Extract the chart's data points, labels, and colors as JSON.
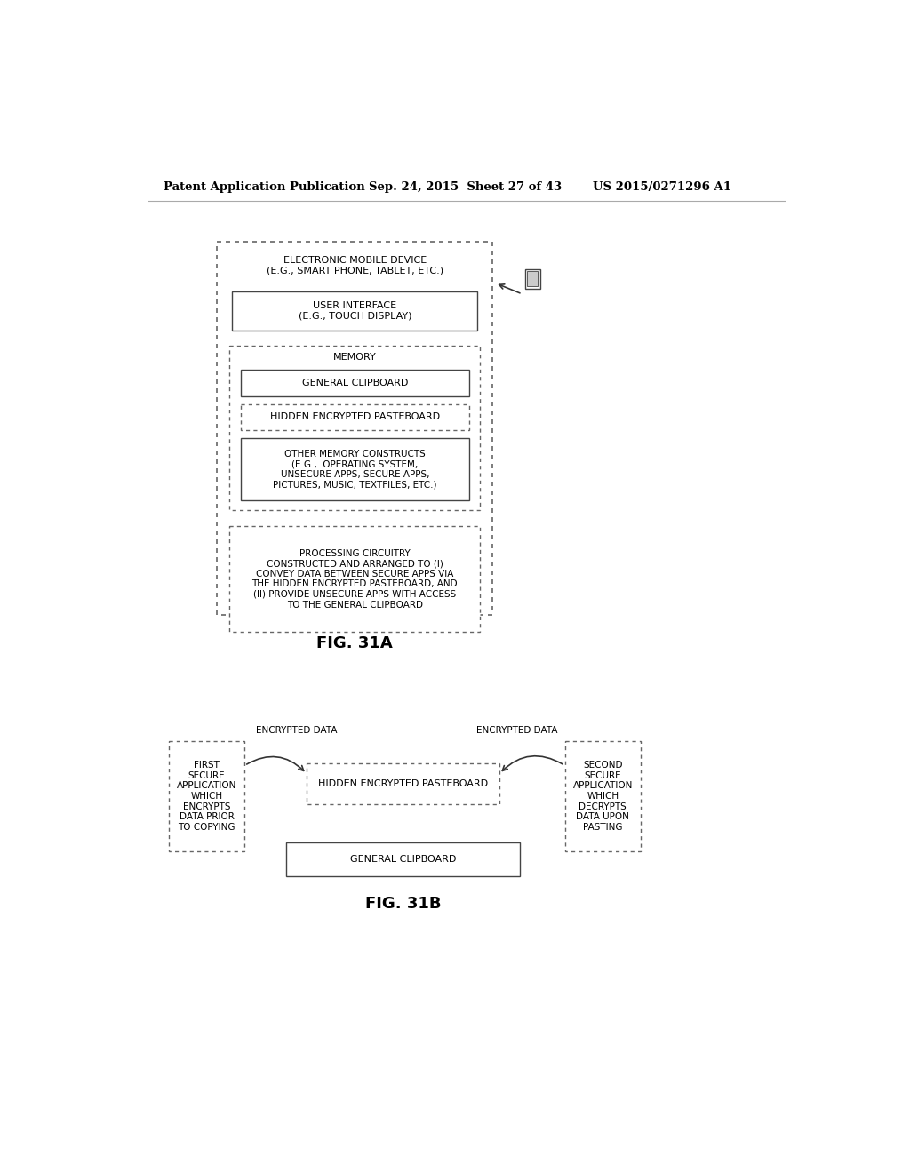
{
  "header_left": "Patent Application Publication",
  "header_mid": "Sep. 24, 2015  Sheet 27 of 43",
  "header_right": "US 2015/0271296 A1",
  "fig_label_a": "FIG. 31A",
  "fig_label_b": "FIG. 31B",
  "bg_color": "#ffffff",
  "text_color": "#000000",
  "fig31a": {
    "outer_label": "ELECTRONIC MOBILE DEVICE\n(E.G., SMART PHONE, TABLET, ETC.)",
    "ui_label": "USER INTERFACE\n(E.G., TOUCH DISPLAY)",
    "memory_label": "MEMORY",
    "gc_label": "GENERAL CLIPBOARD",
    "hep_label": "HIDDEN ENCRYPTED PASTEBOARD",
    "omc_label": "OTHER MEMORY CONSTRUCTS\n(E.G.,  OPERATING SYSTEM,\nUNSECURE APPS, SECURE APPS,\nPICTURES, MUSIC, TEXTFILES, ETC.)",
    "pc_label": "PROCESSING CIRCUITRY\nCONSTRUCTED AND ARRANGED TO (I)\nCONVEY DATA BETWEEN SECURE APPS VIA\nTHE HIDDEN ENCRYPTED PASTEBOARD, AND\n(II) PROVIDE UNSECURE APPS WITH ACCESS\nTO THE GENERAL CLIPBOARD"
  },
  "fig31b": {
    "first_app_label": "FIRST\nSECURE\nAPPLICATION\nWHICH\nENCRYPTS\nDATA PRIOR\nTO COPYING",
    "hep_label": "HIDDEN ENCRYPTED PASTEBOARD",
    "second_app_label": "SECOND\nSECURE\nAPPLICATION\nWHICH\nDECRYPTS\nDATA UPON\nPASTING",
    "gc_label": "GENERAL CLIPBOARD",
    "arrow1_label": "ENCRYPTED DATA",
    "arrow2_label": "ENCRYPTED DATA"
  }
}
